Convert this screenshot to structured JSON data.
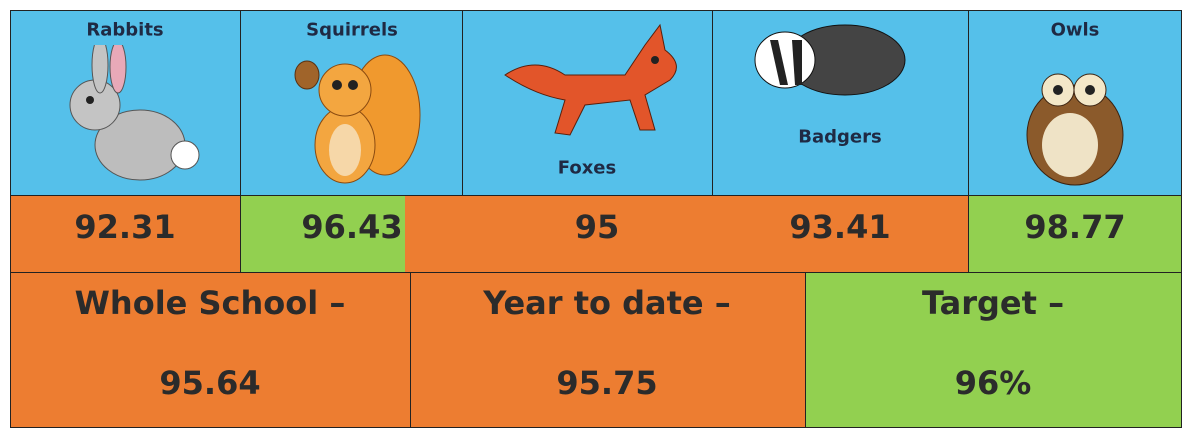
{
  "houses": [
    {
      "name": "Rabbits",
      "score": 92.31
    },
    {
      "name": "Squirrels",
      "score": 96.43
    },
    {
      "name": "Foxes",
      "score": 95
    },
    {
      "name": "Badgers",
      "score": 93.41
    },
    {
      "name": "Owls",
      "score": 98.77
    }
  ],
  "summary": [
    {
      "label": "Whole School –",
      "value": 95.64
    },
    {
      "label": "Year to date –",
      "value": 95.75
    },
    {
      "label": "Target –",
      "value": "96%"
    }
  ]
}
